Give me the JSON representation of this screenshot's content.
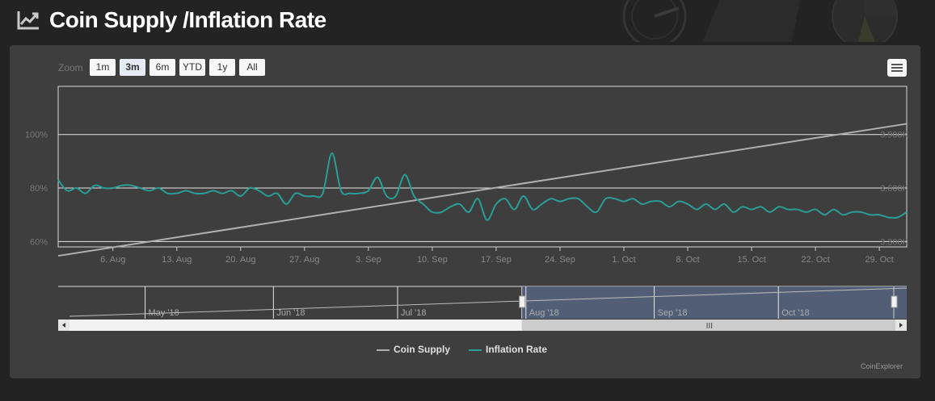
{
  "page": {
    "title": "Coin Supply /Inflation Rate"
  },
  "zoom": {
    "label": "Zoom",
    "buttons": [
      "1m",
      "3m",
      "6m",
      "YTD",
      "1y",
      "All"
    ],
    "selected": "3m"
  },
  "colors": {
    "coin_supply": "#b0b0b0",
    "inflation_rate": "#2a9d96",
    "navigator_mask": "#5a6a8a"
  },
  "chart_data": {
    "type": "line",
    "series": [
      {
        "name": "Coin Supply",
        "axis": "right",
        "x": [
          "2018-07-31",
          "2018-11-01"
        ],
        "y": [
          3220000,
          3960000
        ]
      },
      {
        "name": "Inflation Rate",
        "axis": "left",
        "x": [
          "2018-07-31",
          "2018-08-01",
          "2018-08-02",
          "2018-08-03",
          "2018-08-04",
          "2018-08-05",
          "2018-08-06",
          "2018-08-07",
          "2018-08-08",
          "2018-08-09",
          "2018-08-10",
          "2018-08-11",
          "2018-08-12",
          "2018-08-13",
          "2018-08-14",
          "2018-08-15",
          "2018-08-16",
          "2018-08-17",
          "2018-08-18",
          "2018-08-19",
          "2018-08-20",
          "2018-08-21",
          "2018-08-22",
          "2018-08-23",
          "2018-08-24",
          "2018-08-25",
          "2018-08-26",
          "2018-08-27",
          "2018-08-28",
          "2018-08-29",
          "2018-08-30",
          "2018-08-31",
          "2018-09-01",
          "2018-09-02",
          "2018-09-03",
          "2018-09-04",
          "2018-09-05",
          "2018-09-06",
          "2018-09-07",
          "2018-09-08",
          "2018-09-09",
          "2018-09-10",
          "2018-09-11",
          "2018-09-12",
          "2018-09-13",
          "2018-09-14",
          "2018-09-15",
          "2018-09-16",
          "2018-09-17",
          "2018-09-18",
          "2018-09-19",
          "2018-09-20",
          "2018-09-21",
          "2018-09-22",
          "2018-09-23",
          "2018-09-24",
          "2018-09-25",
          "2018-09-26",
          "2018-09-27",
          "2018-09-28",
          "2018-09-29",
          "2018-09-30",
          "2018-10-01",
          "2018-10-02",
          "2018-10-03",
          "2018-10-04",
          "2018-10-05",
          "2018-10-06",
          "2018-10-07",
          "2018-10-08",
          "2018-10-09",
          "2018-10-10",
          "2018-10-11",
          "2018-10-12",
          "2018-10-13",
          "2018-10-14",
          "2018-10-15",
          "2018-10-16",
          "2018-10-17",
          "2018-10-18",
          "2018-10-19",
          "2018-10-20",
          "2018-10-21",
          "2018-10-22",
          "2018-10-23",
          "2018-10-24",
          "2018-10-25",
          "2018-10-26",
          "2018-10-27",
          "2018-10-28",
          "2018-10-29",
          "2018-10-30",
          "2018-10-31",
          "2018-11-01"
        ],
        "y": [
          83,
          79,
          80,
          78,
          81,
          80,
          80,
          81,
          81,
          80,
          79,
          80,
          78,
          78,
          79,
          78,
          78,
          79,
          78,
          79,
          77,
          80,
          79,
          77,
          78,
          74,
          78,
          77,
          77,
          78,
          93,
          79,
          78,
          78,
          79,
          84,
          77,
          77,
          85,
          77,
          74,
          71,
          71,
          73,
          74,
          71,
          76,
          68,
          74,
          76,
          72,
          77,
          72,
          74,
          76,
          75,
          76,
          76,
          73,
          71,
          76,
          76,
          75,
          76,
          74,
          75,
          75,
          73,
          75,
          74,
          72,
          74,
          72,
          74,
          71,
          73,
          72,
          73,
          71,
          73,
          72,
          72,
          71,
          72,
          70,
          72,
          70,
          71,
          71,
          70,
          70,
          69,
          69,
          71
        ]
      }
    ],
    "x_ticks": [
      "6. Aug",
      "13. Aug",
      "20. Aug",
      "27. Aug",
      "3. Sep",
      "10. Sep",
      "17. Sep",
      "24. Sep",
      "1. Oct",
      "8. Oct",
      "15. Oct",
      "22. Oct",
      "29. Oct"
    ],
    "y_left_ticks": [
      "60%",
      "80%",
      "100%"
    ],
    "y_right_ticks": [
      "3.300K",
      "3.600K",
      "3.900K"
    ],
    "y_left_range": [
      58,
      118
    ],
    "y_right_range": [
      3270000,
      4170000
    ],
    "x_range": [
      "2018-07-31",
      "2018-11-01"
    ],
    "grid": true,
    "legend_position": "bottom-center",
    "navigator": {
      "labels": [
        "May '18",
        "Jun '18",
        "Jul '18",
        "Aug '18",
        "Sep '18",
        "Oct '18"
      ],
      "x_range": [
        "2018-04-10",
        "2018-11-01"
      ]
    }
  },
  "credits": "CoinExplorer"
}
